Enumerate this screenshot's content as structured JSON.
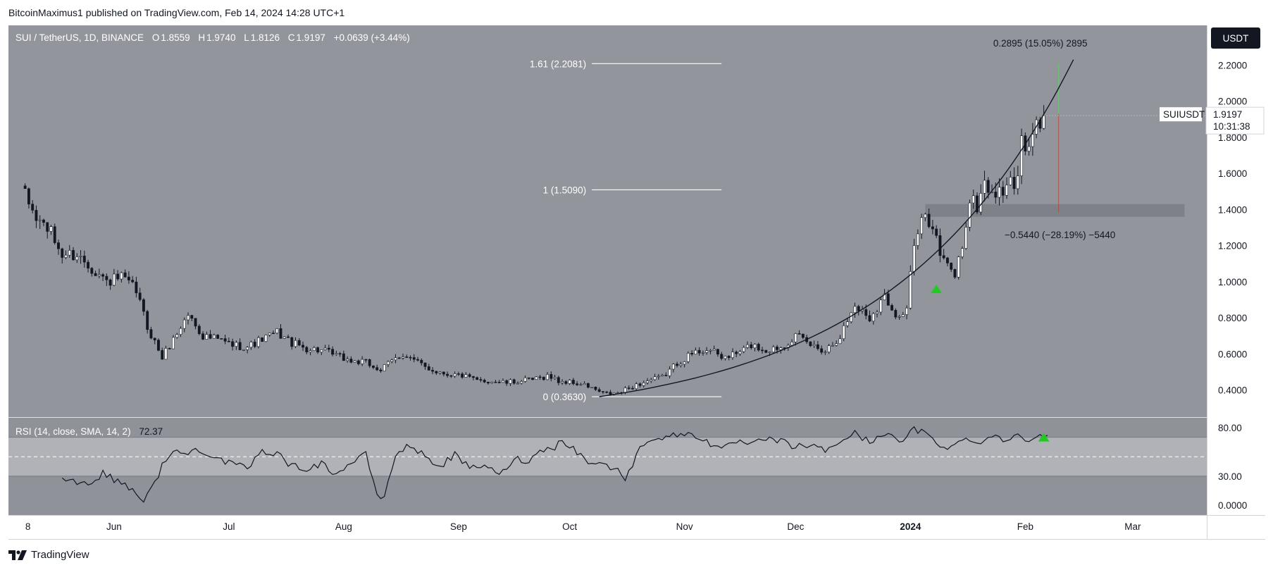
{
  "header": {
    "published_by": "BitcoinMaximus1 published on TradingView.com, Feb 14, 2024 14:28 UTC+1"
  },
  "footer": {
    "brand": "TradingView"
  },
  "colors": {
    "chart_bg": "#92959c",
    "rsi_bg": "#8f9298",
    "rsi_band": "#b0b2b7",
    "candle_up": "#ffffff",
    "candle_down": "#131722",
    "arrow": "#22c922",
    "zone": "#6e7178"
  },
  "chart_data": {
    "type": "candlestick",
    "symbol_line": {
      "symbol": "SUI / TetherUS, 1D, BINANCE",
      "o_label": "O",
      "o_value": "1.8559",
      "h_label": "H",
      "h_value": "1.9740",
      "l_label": "L",
      "l_value": "1.8126",
      "c_label": "C",
      "c_value": "1.9197",
      "change": "+0.0639 (+3.44%)"
    },
    "currency_badge": "USDT",
    "price_tag": {
      "symbol": "SUIUSDT",
      "price": "1.9197",
      "countdown": "10:31:38"
    },
    "y_ticks": [
      "2.2000",
      "2.0000",
      "1.8000",
      "1.6000",
      "1.4000",
      "1.2000",
      "1.0000",
      "0.8000",
      "0.6000",
      "0.4000"
    ],
    "y_tick_values": [
      2.2,
      2.0,
      1.8,
      1.6,
      1.4,
      1.2,
      1.0,
      0.8,
      0.6,
      0.4
    ],
    "ylim": [
      0.25,
      2.42
    ],
    "x_ticks": [
      "8",
      "Jun",
      "Jul",
      "Aug",
      "Sep",
      "Oct",
      "Nov",
      "Dec",
      "2024",
      "Feb",
      "Mar"
    ],
    "x_tick_days": [
      0,
      24,
      55,
      86,
      117,
      147,
      178,
      208,
      239,
      270,
      299
    ],
    "x_range_days": [
      -4.5,
      319
    ],
    "x_start": "2023-05-08",
    "series": [
      {
        "name": "May-Oct anchors",
        "values": [
          [
            0,
            1.47
          ],
          [
            3,
            1.35
          ],
          [
            6,
            1.3
          ],
          [
            10,
            1.15
          ],
          [
            14,
            1.15
          ],
          [
            18,
            1.08
          ],
          [
            22,
            1.0
          ],
          [
            26,
            1.02
          ],
          [
            30,
            0.95
          ],
          [
            33,
            0.75
          ],
          [
            37,
            0.58
          ],
          [
            40,
            0.68
          ],
          [
            44,
            0.82
          ],
          [
            48,
            0.7
          ],
          [
            52,
            0.68
          ],
          [
            56,
            0.65
          ],
          [
            60,
            0.64
          ],
          [
            64,
            0.68
          ],
          [
            68,
            0.72
          ],
          [
            72,
            0.66
          ],
          [
            76,
            0.63
          ],
          [
            80,
            0.62
          ],
          [
            84,
            0.59
          ],
          [
            88,
            0.56
          ],
          [
            92,
            0.55
          ],
          [
            96,
            0.51
          ],
          [
            99,
            0.56
          ],
          [
            102,
            0.6
          ],
          [
            106,
            0.55
          ],
          [
            110,
            0.51
          ],
          [
            114,
            0.49
          ],
          [
            118,
            0.48
          ],
          [
            122,
            0.45
          ],
          [
            126,
            0.45
          ],
          [
            130,
            0.44
          ],
          [
            134,
            0.45
          ],
          [
            138,
            0.46
          ],
          [
            141,
            0.48
          ],
          [
            144,
            0.45
          ],
          [
            148,
            0.44
          ],
          [
            152,
            0.42
          ],
          [
            156,
            0.38
          ],
          [
            160,
            0.38
          ]
        ]
      },
      {
        "name": "Oct-Feb anchors",
        "values": [
          [
            164,
            0.42
          ],
          [
            168,
            0.45
          ],
          [
            172,
            0.47
          ],
          [
            176,
            0.55
          ],
          [
            180,
            0.6
          ],
          [
            184,
            0.63
          ],
          [
            188,
            0.58
          ],
          [
            192,
            0.6
          ],
          [
            196,
            0.65
          ],
          [
            200,
            0.62
          ],
          [
            204,
            0.64
          ],
          [
            208,
            0.7
          ],
          [
            212,
            0.65
          ],
          [
            216,
            0.62
          ],
          [
            220,
            0.7
          ],
          [
            224,
            0.87
          ],
          [
            228,
            0.8
          ],
          [
            232,
            0.92
          ],
          [
            236,
            0.8
          ],
          [
            238,
            0.86
          ],
          [
            240,
            1.2
          ],
          [
            243,
            1.37
          ],
          [
            245,
            1.33
          ],
          [
            247,
            1.15
          ],
          [
            249,
            1.08
          ],
          [
            251,
            1.04
          ],
          [
            253,
            1.2
          ],
          [
            255,
            1.45
          ],
          [
            257,
            1.42
          ],
          [
            259,
            1.55
          ],
          [
            261,
            1.5
          ],
          [
            263,
            1.48
          ],
          [
            265,
            1.55
          ],
          [
            267,
            1.52
          ],
          [
            269,
            1.75
          ],
          [
            271,
            1.72
          ],
          [
            273,
            1.86
          ],
          [
            275,
            1.92
          ]
        ]
      }
    ],
    "fib_levels": [
      {
        "label": "1.61 (2.2081)",
        "value": 2.2081
      },
      {
        "label": "1 (1.5090)",
        "value": 1.509
      },
      {
        "label": "0 (0.3630)",
        "value": 0.363
      }
    ],
    "fib_day_range": [
      153,
      188
    ],
    "measure_up": {
      "label": "0.2895 (15.05%) 2895",
      "top": 2.2092,
      "bottom": 1.92,
      "day": 279
    },
    "measure_down": {
      "label": "−0.5440 (−28.19%) −5440",
      "top": 1.93,
      "bottom": 1.386,
      "day": 279
    },
    "resistance_zone": {
      "low": 1.36,
      "high": 1.43,
      "from_day": 243,
      "to_day": 313
    },
    "curve": {
      "start_day": 155,
      "start_value": 0.363,
      "end_day": 283,
      "end_value": 2.23
    },
    "arrow_day": 246,
    "arrow_value": 0.96,
    "rsi": {
      "label": "RSI (14, close, SMA, 14, 2)",
      "value": "72.37",
      "ticks": [
        "80.00",
        "30.00",
        "0.0000"
      ],
      "tick_values": [
        80,
        30,
        0
      ],
      "ylim": [
        -10,
        90
      ],
      "band": [
        30,
        70
      ],
      "mid": 50,
      "anchors": [
        [
          10,
          30
        ],
        [
          14,
          24
        ],
        [
          18,
          22
        ],
        [
          21,
          34
        ],
        [
          24,
          26
        ],
        [
          27,
          22
        ],
        [
          30,
          13
        ],
        [
          32,
          5
        ],
        [
          35,
          22
        ],
        [
          37,
          42
        ],
        [
          40,
          55
        ],
        [
          43,
          53
        ],
        [
          47,
          58
        ],
        [
          52,
          48
        ],
        [
          56,
          42
        ],
        [
          60,
          38
        ],
        [
          64,
          55
        ],
        [
          68,
          54
        ],
        [
          72,
          40
        ],
        [
          76,
          38
        ],
        [
          80,
          43
        ],
        [
          84,
          32
        ],
        [
          88,
          44
        ],
        [
          92,
          52
        ],
        [
          94,
          26
        ],
        [
          95,
          8
        ],
        [
          97,
          10
        ],
        [
          100,
          52
        ],
        [
          104,
          62
        ],
        [
          108,
          50
        ],
        [
          112,
          40
        ],
        [
          116,
          52
        ],
        [
          120,
          38
        ],
        [
          124,
          42
        ],
        [
          128,
          30
        ],
        [
          132,
          48
        ],
        [
          136,
          46
        ],
        [
          140,
          58
        ],
        [
          143,
          60
        ],
        [
          145,
          68
        ],
        [
          148,
          58
        ],
        [
          152,
          45
        ],
        [
          156,
          42
        ],
        [
          160,
          36
        ],
        [
          162,
          28
        ],
        [
          164,
          42
        ],
        [
          166,
          58
        ],
        [
          168,
          68
        ],
        [
          172,
          70
        ],
        [
          176,
          72
        ],
        [
          180,
          74
        ],
        [
          184,
          66
        ],
        [
          188,
          56
        ],
        [
          192,
          66
        ],
        [
          196,
          62
        ],
        [
          200,
          68
        ],
        [
          204,
          66
        ],
        [
          208,
          60
        ],
        [
          212,
          62
        ],
        [
          216,
          56
        ],
        [
          220,
          66
        ],
        [
          224,
          74
        ],
        [
          228,
          65
        ],
        [
          232,
          75
        ],
        [
          236,
          64
        ],
        [
          240,
          78
        ],
        [
          243,
          74
        ],
        [
          247,
          62
        ],
        [
          250,
          60
        ],
        [
          254,
          68
        ],
        [
          258,
          66
        ],
        [
          262,
          72
        ],
        [
          265,
          67
        ],
        [
          269,
          72
        ],
        [
          271,
          66
        ],
        [
          274,
          72
        ],
        [
          276,
          74
        ]
      ],
      "arrow_day": 275
    }
  }
}
